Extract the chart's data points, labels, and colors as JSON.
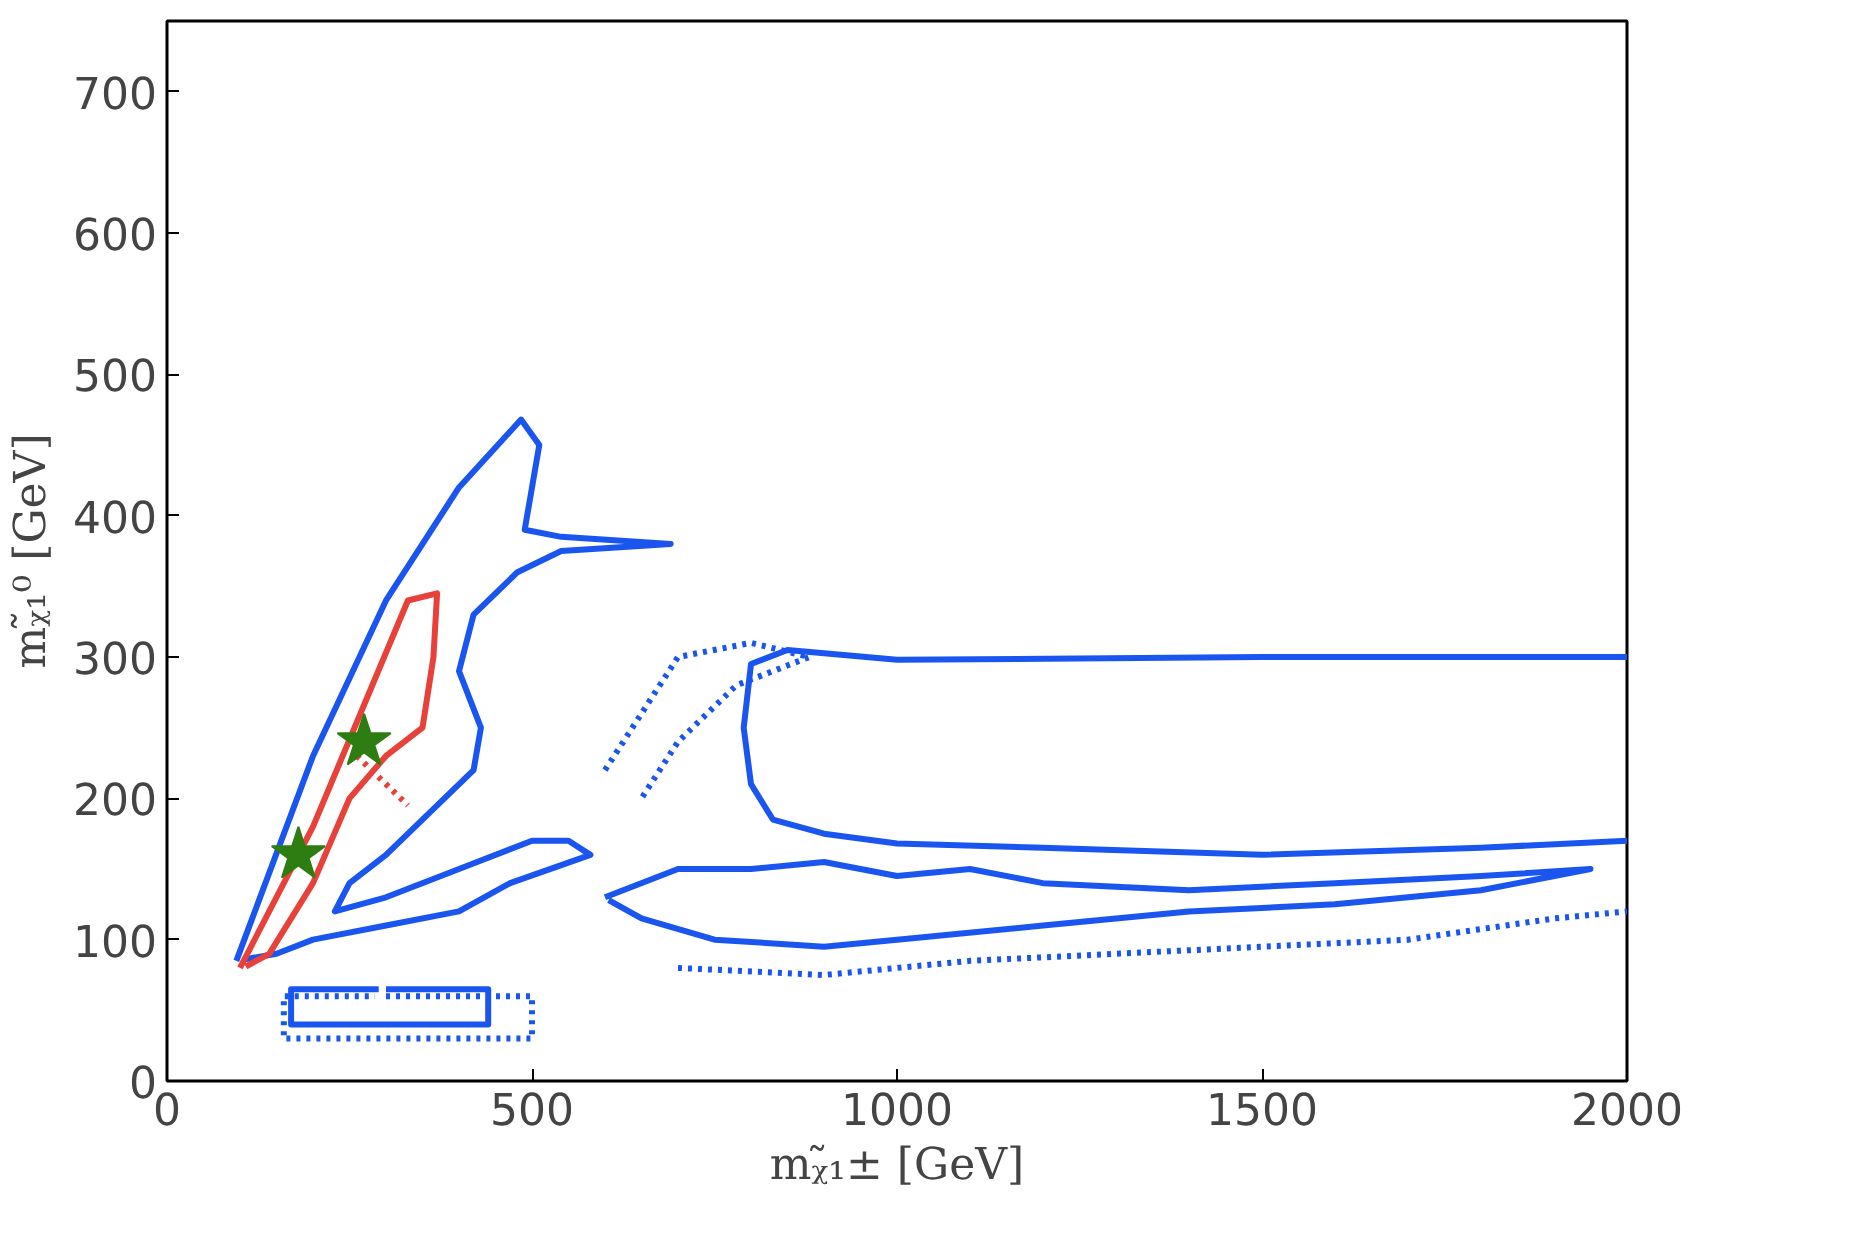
{
  "chart_data": {
    "type": "line",
    "xlabel": "mᵪ̃₁± [GeV]",
    "ylabel": "mᵪ̃₁⁰ [GeV]",
    "xlim": [
      0,
      2000
    ],
    "ylim": [
      0,
      750
    ],
    "xticks": [
      0,
      500,
      1000,
      1500,
      2000
    ],
    "yticks": [
      0,
      100,
      200,
      300,
      400,
      500,
      600,
      700
    ],
    "grid": false,
    "series": [
      {
        "color": "#1a55f0",
        "line_style": "solid",
        "x": [
          95,
          200,
          300,
          400,
          485,
          510,
          500,
          490,
          540,
          690,
          540,
          480,
          420,
          400,
          430,
          420,
          380,
          300,
          250,
          230,
          300,
          400,
          500,
          550,
          580,
          470,
          400,
          300,
          200,
          150,
          105
        ],
        "values": [
          85,
          230,
          340,
          420,
          468,
          450,
          420,
          390,
          385,
          380,
          375,
          360,
          330,
          290,
          250,
          220,
          200,
          160,
          140,
          120,
          130,
          150,
          170,
          170,
          160,
          140,
          120,
          110,
          100,
          90,
          86
        ]
      },
      {
        "color": "#1a55f0",
        "line_style": "solid",
        "x": [
          2000,
          1500,
          1000,
          850,
          800,
          790,
          800,
          830,
          900,
          1000,
          1200,
          1500,
          1800,
          2000
        ],
        "values": [
          300,
          300,
          298,
          305,
          295,
          250,
          210,
          185,
          175,
          168,
          165,
          160,
          165,
          170
        ]
      },
      {
        "color": "#1a55f0",
        "line_style": "solid",
        "x": [
          600,
          700,
          800,
          900,
          1000,
          1100,
          1200,
          1400,
          1600,
          1800,
          1950,
          1800,
          1600,
          1400,
          1200,
          1000,
          900,
          750,
          650,
          605
        ],
        "values": [
          130,
          150,
          150,
          155,
          145,
          150,
          140,
          135,
          140,
          145,
          150,
          135,
          125,
          120,
          110,
          100,
          95,
          100,
          115,
          128
        ]
      },
      {
        "color": "#1a55f0",
        "line_style": "solid",
        "x": [
          300,
          440,
          440,
          170,
          170,
          290
        ],
        "values": [
          65,
          65,
          40,
          40,
          65,
          65
        ]
      },
      {
        "color": "#1a55f0",
        "line_style": "dotted",
        "x": [
          300,
          500,
          500,
          160,
          160,
          285
        ],
        "values": [
          60,
          60,
          30,
          30,
          60,
          60
        ]
      },
      {
        "color": "#1a55f0",
        "line_style": "dotted",
        "x": [
          700,
          900,
          1100,
          1300,
          1500,
          1700,
          1900,
          2000
        ],
        "values": [
          80,
          75,
          85,
          90,
          95,
          100,
          115,
          120
        ]
      },
      {
        "color": "#1a55f0",
        "line_style": "dotted",
        "x": [
          600,
          650,
          700,
          800,
          880,
          780,
          700,
          650
        ],
        "values": [
          220,
          260,
          300,
          310,
          300,
          280,
          240,
          200
        ]
      },
      {
        "color": "#e8413a",
        "line_style": "solid",
        "x": [
          100,
          200,
          330,
          370,
          365,
          350,
          300,
          250,
          200,
          140,
          108
        ],
        "values": [
          80,
          180,
          340,
          345,
          300,
          250,
          230,
          200,
          140,
          90,
          81
        ]
      },
      {
        "color": "#e8413a",
        "line_style": "dotted",
        "x": [
          260,
          300,
          330
        ],
        "values": [
          230,
          210,
          195
        ]
      },
      {
        "color": "#2e7d12",
        "type": "scatter",
        "marker": "star",
        "x": [
          180
        ],
        "values": [
          160
        ]
      },
      {
        "color": "#2e7d12",
        "type": "scatter",
        "marker": "star",
        "x": [
          270
        ],
        "values": [
          240
        ]
      }
    ]
  }
}
